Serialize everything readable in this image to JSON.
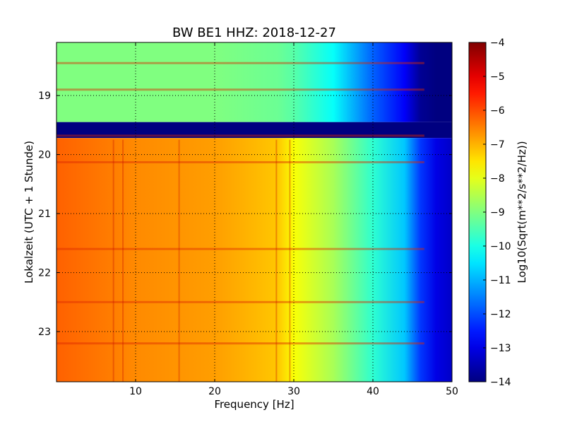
{
  "chart_data": {
    "type": "heatmap",
    "title": "BW BE1 HHZ: 2018-12-27",
    "xlabel": "Frequency [Hz]",
    "ylabel": "Lokalzeit (UTC + 1 Stunde)",
    "colorbar_label": "Log10(Sqrt(m**2/s**2/Hz))",
    "colormap": "jet",
    "xlim": [
      0,
      50
    ],
    "ylim": [
      18.1,
      23.85
    ],
    "y_inverted": true,
    "clim": [
      -14,
      -4
    ],
    "x_ticks": [
      10,
      20,
      30,
      40,
      50
    ],
    "x_tick_labels": [
      "10",
      "20",
      "30",
      "40",
      "50"
    ],
    "y_ticks": [
      19,
      20,
      21,
      22,
      23
    ],
    "y_tick_labels": [
      "19",
      "20",
      "21",
      "22",
      "23"
    ],
    "colorbar_ticks": [
      -4,
      -5,
      -6,
      -7,
      -8,
      -9,
      -10,
      -11,
      -12,
      -13,
      -14
    ],
    "colorbar_tick_labels": [
      "−4",
      "−5",
      "−6",
      "−7",
      "−8",
      "−9",
      "−10",
      "−11",
      "−12",
      "−13",
      "−14"
    ],
    "grid": true,
    "frequency_profile_hz": [
      0,
      5,
      10,
      20,
      28,
      30,
      35,
      40,
      44,
      46,
      48,
      50
    ],
    "segments": [
      {
        "hours": [
          18.1,
          19.45
        ],
        "level_log10": [
          -9.0,
          -9.0,
          -9.0,
          -9.0,
          -9.2,
          -9.4,
          -10.2,
          -11.8,
          -12.8,
          -13.8,
          -14.0,
          -14.0
        ]
      },
      {
        "hours": [
          19.45,
          19.72
        ],
        "level_log10": [
          -14.0,
          -14.0,
          -14.0,
          -14.0,
          -14.0,
          -14.0,
          -14.0,
          -14.0,
          -14.0,
          -14.0,
          -14.0,
          -14.0
        ]
      },
      {
        "hours": [
          19.72,
          23.85
        ],
        "level_log10": [
          -6.2,
          -6.4,
          -6.6,
          -6.8,
          -7.2,
          -7.8,
          -8.6,
          -9.8,
          -10.8,
          -12.2,
          -13.0,
          -13.3
        ]
      }
    ],
    "horizontal_bands_hours": [
      18.45,
      18.9,
      19.68,
      20.13,
      21.6,
      22.5,
      23.2
    ],
    "vertical_lines_hz": [
      7.2,
      8.4,
      15.5,
      27.8,
      29.5
    ]
  }
}
